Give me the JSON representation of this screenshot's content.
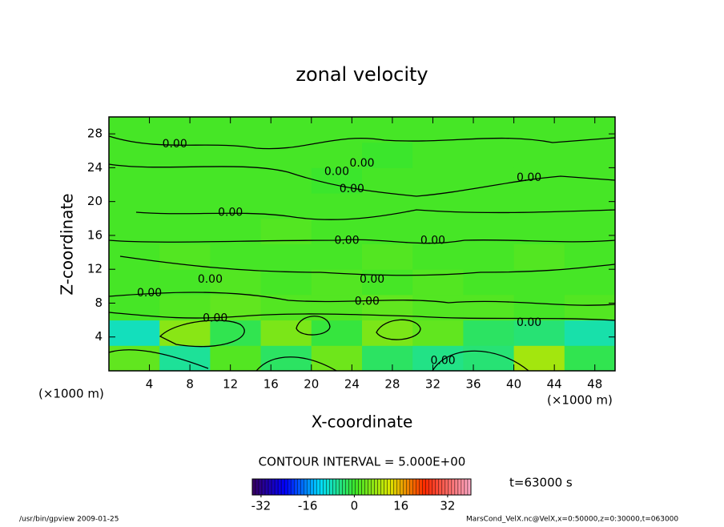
{
  "chart_data": {
    "type": "contour",
    "title": "zonal velocity",
    "x_label": "X-coordinate",
    "y_label": "Z-coordinate",
    "x_unit": "(×1000 m)",
    "xlim": [
      0,
      50
    ],
    "ylim": [
      0,
      30
    ],
    "xticks": [
      4,
      8,
      12,
      16,
      20,
      24,
      28,
      32,
      36,
      40,
      44,
      48
    ],
    "yticks": [
      4,
      8,
      12,
      16,
      20,
      24,
      28
    ],
    "z": [
      [
        3,
        -6,
        2,
        -3,
        4,
        -3,
        -5,
        -4,
        8,
        -2
      ],
      [
        -8,
        6,
        -2,
        5,
        -1,
        5,
        3,
        -3,
        -4,
        -7
      ],
      [
        1,
        2,
        3,
        2,
        2,
        3,
        2,
        2,
        1,
        2
      ],
      [
        1,
        1,
        2,
        1,
        2,
        1,
        2,
        1,
        1,
        1
      ],
      [
        1,
        2,
        1,
        1,
        1,
        2,
        1,
        1,
        2,
        1
      ],
      [
        1,
        1,
        1,
        2,
        1,
        1,
        1,
        1,
        1,
        1
      ],
      [
        1,
        1,
        1,
        1,
        1,
        1,
        1,
        1,
        1,
        1
      ],
      [
        1,
        1,
        1,
        1,
        0,
        1,
        1,
        1,
        1,
        1
      ],
      [
        1,
        1,
        1,
        1,
        1,
        0,
        1,
        1,
        1,
        1
      ],
      [
        1,
        1,
        1,
        1,
        1,
        1,
        1,
        1,
        1,
        1
      ]
    ],
    "contour_interval_text": "CONTOUR INTERVAL = 5.000E+00",
    "contour_labels": [
      {
        "text": "0.00",
        "x": 6.5,
        "y": 26.8
      },
      {
        "text": "0.00",
        "x": 22.5,
        "y": 23.5
      },
      {
        "text": "0.00",
        "x": 25,
        "y": 24.5
      },
      {
        "text": "0.00",
        "x": 24,
        "y": 21.5
      },
      {
        "text": "0.00",
        "x": 41.5,
        "y": 22.8
      },
      {
        "text": "0.00",
        "x": 12,
        "y": 18.7
      },
      {
        "text": "0.00",
        "x": 23.5,
        "y": 15.4
      },
      {
        "text": "0.00",
        "x": 32,
        "y": 15.4
      },
      {
        "text": "0.00",
        "x": 10,
        "y": 10.8
      },
      {
        "text": "0.00",
        "x": 4,
        "y": 9.2
      },
      {
        "text": "0.00",
        "x": 26,
        "y": 10.8
      },
      {
        "text": "0.00",
        "x": 25.5,
        "y": 8.2
      },
      {
        "text": "0.00",
        "x": 10.5,
        "y": 6.2
      },
      {
        "text": "0.00",
        "x": 41.5,
        "y": 5.7
      },
      {
        "text": "0.00",
        "x": 33,
        "y": 1.2
      }
    ],
    "clim": [
      -35,
      40
    ],
    "cticks": [
      -32,
      -16,
      0,
      16,
      32
    ],
    "time_label": "t=63000 s",
    "footer_left": "/usr/bin/gpview  2009-01-25",
    "footer_right": "MarsCond_VelX.nc@VelX,x=0:50000,z=0:30000,t=063000"
  }
}
